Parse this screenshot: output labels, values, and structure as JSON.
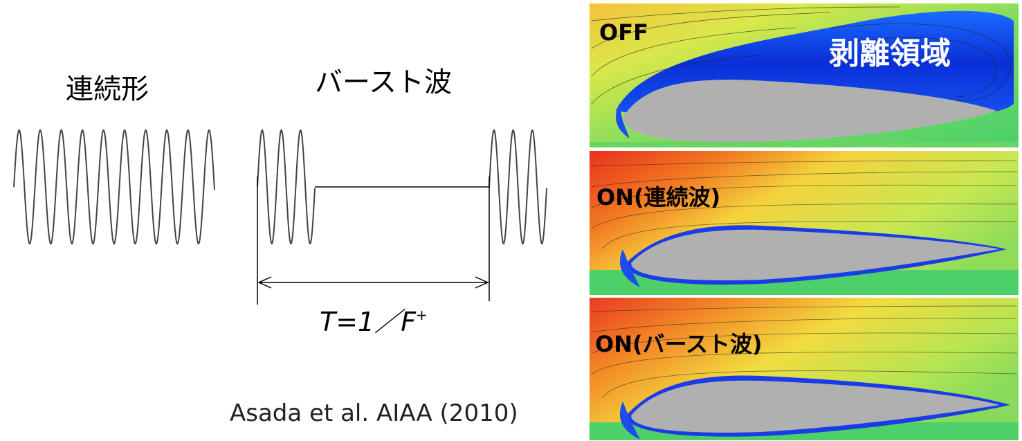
{
  "waveforms": {
    "continuous": {
      "label": "連続形"
    },
    "burst": {
      "label": "バースト波",
      "period": {
        "text": "T=1／F",
        "superscript": "+"
      }
    }
  },
  "citation": "Asada et al. AIAA (2010)",
  "panels": [
    {
      "label": "OFF",
      "annotation": "剥離領域"
    },
    {
      "label": "ON(連続波)"
    },
    {
      "label": "ON(バースト波)"
    }
  ]
}
